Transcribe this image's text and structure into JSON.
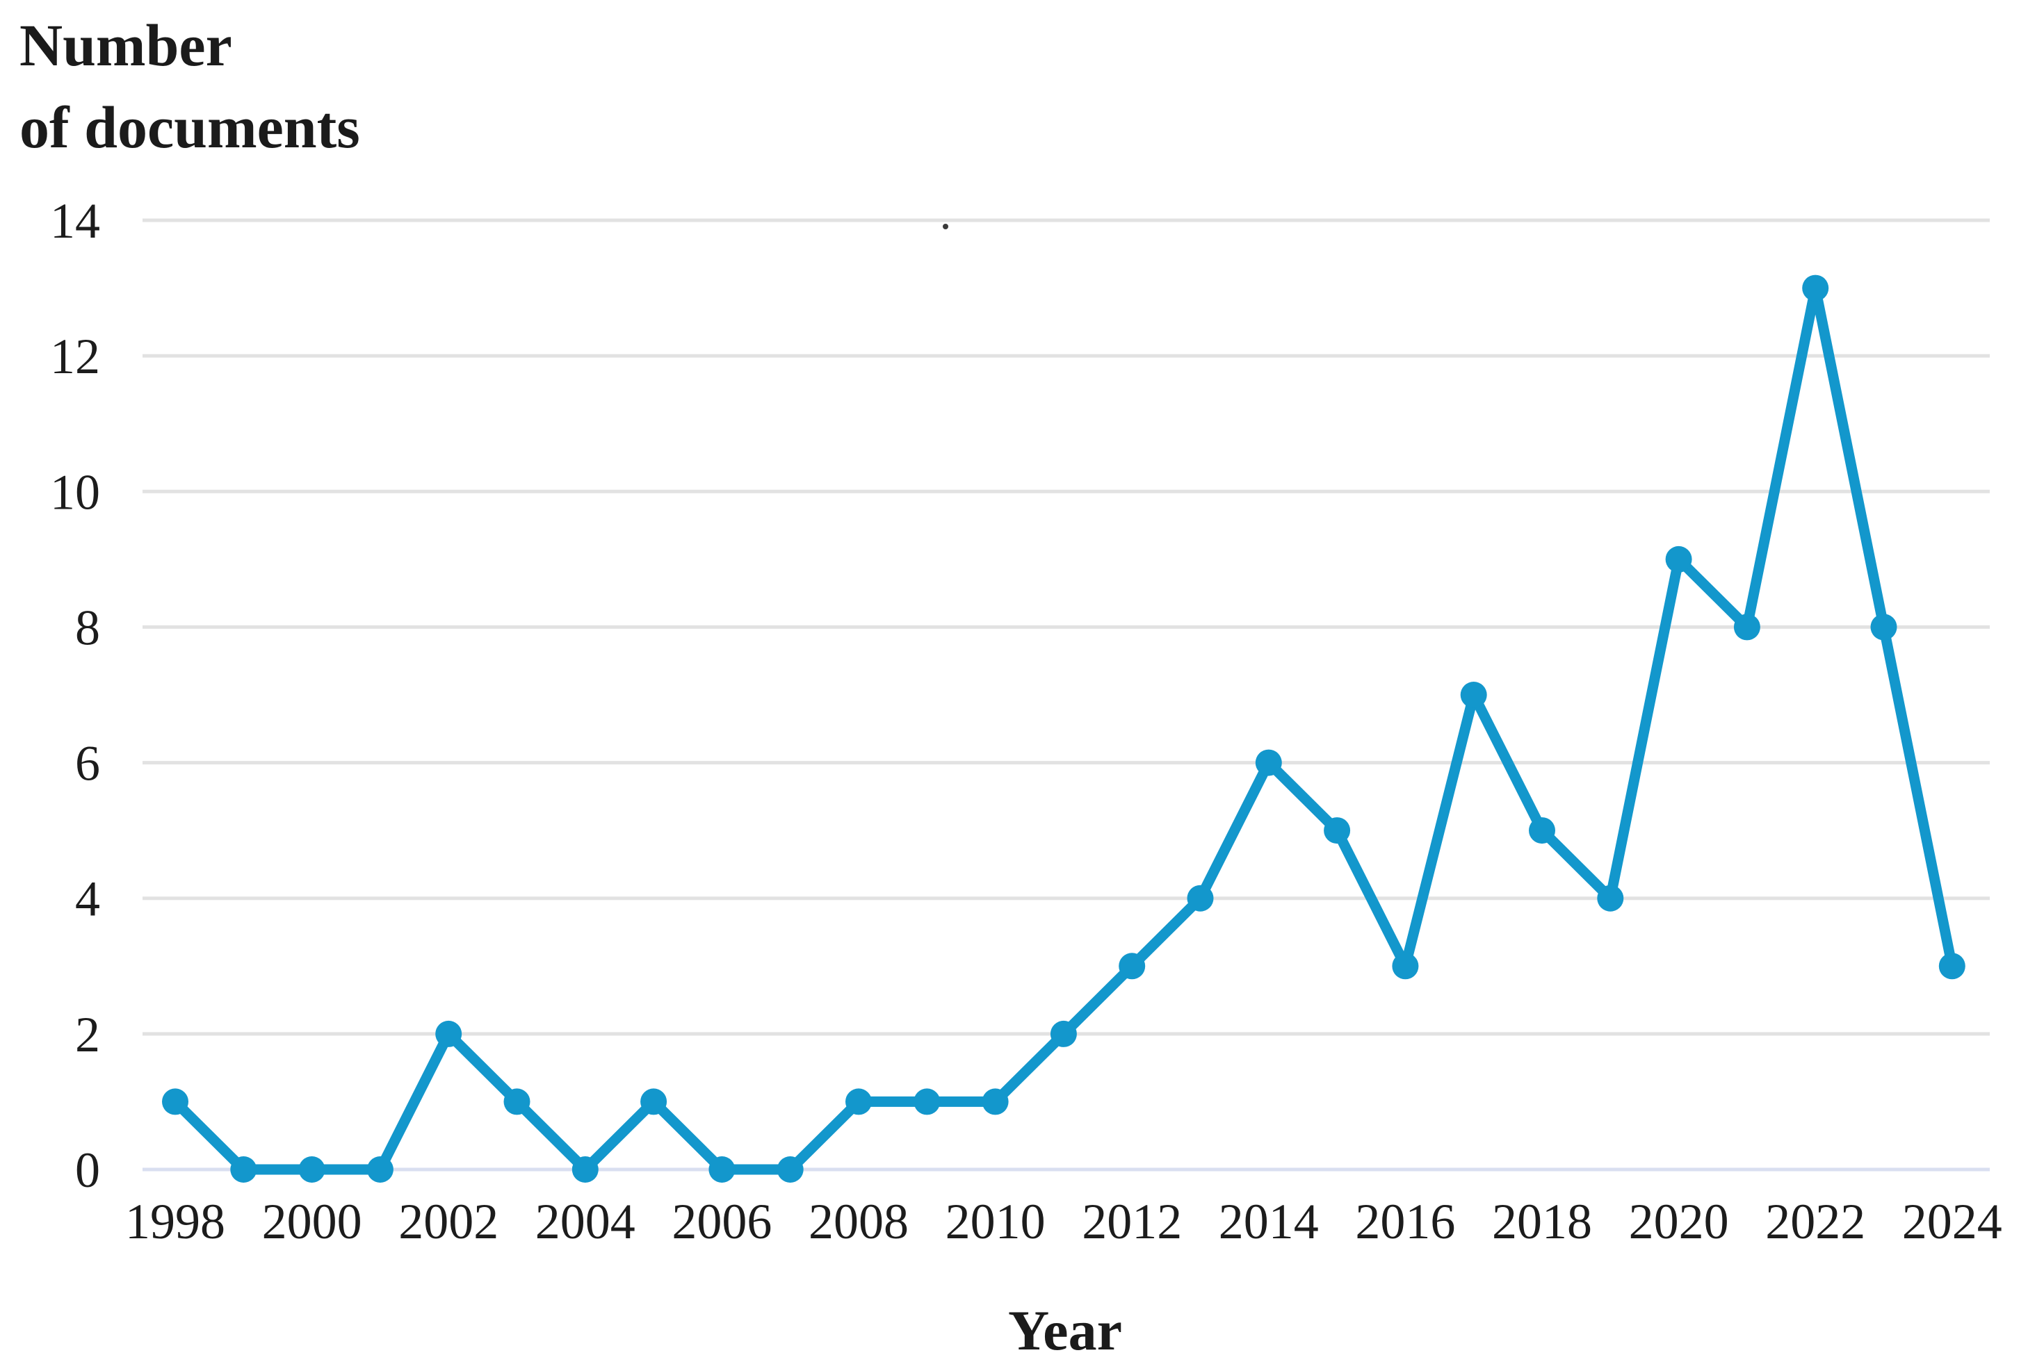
{
  "title": {
    "line1": "Number",
    "line2": "of documents"
  },
  "x_axis_label": "Year",
  "chart_data": {
    "type": "line",
    "title": "Number of documents",
    "xlabel": "Year",
    "ylabel": "Number of documents",
    "x": [
      1998,
      1999,
      2000,
      2001,
      2002,
      2003,
      2004,
      2005,
      2006,
      2007,
      2008,
      2009,
      2010,
      2011,
      2012,
      2013,
      2014,
      2015,
      2016,
      2017,
      2018,
      2019,
      2020,
      2021,
      2022,
      2023,
      2024
    ],
    "series": [
      {
        "name": "Number of documents",
        "values": [
          1,
          0,
          0,
          0,
          2,
          1,
          0,
          1,
          0,
          0,
          1,
          1,
          1,
          2,
          3,
          4,
          6,
          5,
          3,
          7,
          5,
          4,
          9,
          8,
          13,
          8,
          3
        ]
      }
    ],
    "ylim": [
      0,
      14
    ],
    "yticks": [
      0,
      2,
      4,
      6,
      8,
      10,
      12,
      14
    ],
    "xticks": [
      1998,
      2000,
      2002,
      2004,
      2006,
      2008,
      2010,
      2012,
      2014,
      2016,
      2018,
      2020,
      2022,
      2024
    ],
    "grid": true,
    "legend": "none",
    "marker": "circle",
    "line_color": "#1397CC",
    "gridline_color": "#e2e2e2",
    "baseline_color": "#d9dff0",
    "text_color": "#1c1c1c"
  }
}
